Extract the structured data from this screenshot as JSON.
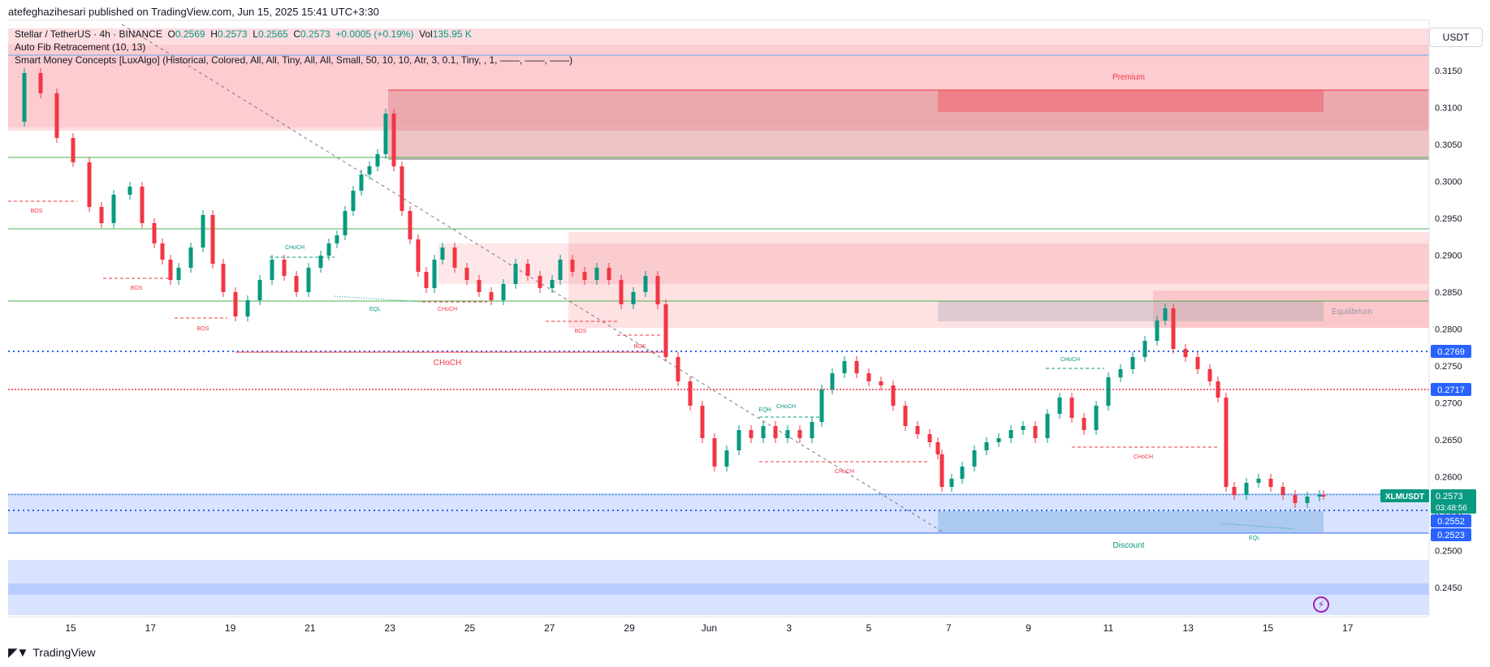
{
  "header": {
    "published": "atefeghazihesari published on TradingView.com, Jun 15, 2025 15:41 UTC+3:30"
  },
  "legend": {
    "symbol": "Stellar / TetherUS · 4h · BINANCE",
    "open_label": "O",
    "open": "0.2569",
    "high_label": "H",
    "high": "0.2573",
    "low_label": "L",
    "low": "0.2565",
    "close_label": "C",
    "close": "0.2573",
    "change": "+0.0005 (+0.19%)",
    "vol_label": "Vol",
    "vol": "135.95 K",
    "indicator1": "Auto Fib Retracement (10, 13)",
    "indicator2": "Smart Money Concepts [LuxAlgo] (Historical, Colored, All, All, Tiny, All, All, Small, 50, 10, 10, Atr, 3, 0.1, Tiny, , 1, ——, ——, ——)"
  },
  "price_axis": {
    "currency": "USDT",
    "ticks": [
      "0.3150",
      "0.3100",
      "0.3050",
      "0.3000",
      "0.2950",
      "0.2900",
      "0.2850",
      "0.2800",
      "0.2750",
      "0.2700",
      "0.2650",
      "0.2600",
      "0.2550",
      "0.2500",
      "0.2450"
    ],
    "tag_top": "0.2769",
    "tag_red": "0.2717",
    "tag_symbol": "XLMUSDT",
    "tag_price": "0.2573",
    "tag_countdown": "03:48:56",
    "tag_low1": "0.2552",
    "tag_low2": "0.2523"
  },
  "time_axis": {
    "ticks": [
      "15",
      "17",
      "19",
      "21",
      "23",
      "25",
      "27",
      "29",
      "Jun",
      "3",
      "5",
      "7",
      "9",
      "11",
      "13",
      "15",
      "17"
    ]
  },
  "zones": {
    "premium": "Premium",
    "equilibrium": "Equilibrium",
    "discount": "Discount"
  },
  "labels": {
    "bos": "BOS",
    "choch": "CHoCH",
    "eql": "EQL",
    "eqh": "EQH"
  },
  "colors": {
    "up": "#089981",
    "down": "#f23645",
    "blue": "#2962ff"
  },
  "footer": {
    "brand": "TradingView"
  },
  "icons": {
    "logo": "tradingview-logo-icon",
    "alert": "lightning-bolt-icon"
  }
}
